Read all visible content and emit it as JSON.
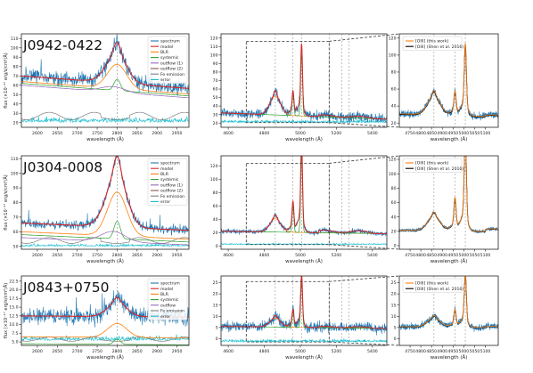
{
  "figure": {
    "colors": {
      "spectrum": "#1f77b4",
      "model": "#d62728",
      "blr": "#ff7f0e",
      "systemic": "#2ca02c",
      "outflow1": "#9467bd",
      "outflow2": "#8c564b",
      "outflow": "#9467bd",
      "fe": "#7f7f7f",
      "error": "#17becf",
      "oiii_this": "#ff7f0e",
      "oiii_shen": "#000000"
    }
  },
  "chart_data": [
    {
      "type": "line",
      "object_label": "J0942-0422",
      "xlabel": "wavelength (Å)",
      "ylabel": "flux (×10⁻¹⁷ erg/s/cm²/Å)",
      "xlim": [
        2560,
        2980
      ],
      "ylim": [
        15,
        115
      ],
      "xticks": [
        "2600",
        "2650",
        "2700",
        "2750",
        "2800",
        "2850",
        "2900",
        "2950"
      ],
      "yticks": [
        "20",
        "30",
        "40",
        "50",
        "60",
        "70",
        "80",
        "90",
        "100",
        "110"
      ],
      "legend": [
        "spectrum",
        "model",
        "BLR",
        "systemic",
        "outflow (1)",
        "outflow (2)",
        "Fe emission",
        "error"
      ],
      "line_center": 2800
    },
    {
      "type": "line",
      "xlim": [
        4560,
        5480
      ],
      "ylim": [
        15,
        125
      ],
      "xticks": [
        "4600",
        "4800",
        "5000",
        "5200",
        "5400"
      ],
      "yticks": [
        "20",
        "30",
        "40",
        "50",
        "60",
        "70",
        "80",
        "90",
        "100",
        "110",
        "120"
      ],
      "xlabel": "wavelength (Å)",
      "vlines": [
        4861,
        4959,
        5007,
        5160,
        5230,
        5270
      ]
    },
    {
      "type": "line",
      "xlim": [
        4700,
        5160
      ],
      "ylim": [
        15,
        125
      ],
      "xticks": [
        "4750",
        "4800",
        "4850",
        "4900",
        "4950",
        "5000",
        "5050",
        "5100"
      ],
      "yticks": [
        "20",
        "40",
        "60",
        "80",
        "100",
        "120"
      ],
      "xlabel": "wavelength (Å)",
      "legend": [
        "[OIII] (this work)",
        "[OIII] (Shen et al. 2016)"
      ],
      "vlines": [
        4861,
        4959,
        5007
      ]
    },
    {
      "type": "line",
      "object_label": "J0304-0008",
      "xlabel": "wavelength (Å)",
      "ylabel": "flux (×10⁻¹⁷ erg/s/cm²/Å)",
      "xlim": [
        2560,
        2980
      ],
      "ylim": [
        48,
        112
      ],
      "xticks": [
        "2600",
        "2650",
        "2700",
        "2750",
        "2800",
        "2850",
        "2900",
        "2950"
      ],
      "yticks": [
        "50",
        "60",
        "70",
        "80",
        "90",
        "100",
        "110"
      ],
      "legend": [
        "spectrum",
        "model",
        "BLR",
        "systemic",
        "outflow (1)",
        "outflow (2)",
        "Fe emission",
        "error"
      ],
      "line_center": 2800
    },
    {
      "type": "line",
      "xlim": [
        4560,
        5480
      ],
      "ylim": [
        -5,
        135
      ],
      "xticks": [
        "4600",
        "4800",
        "5000",
        "5200",
        "5400"
      ],
      "yticks": [
        "0",
        "20",
        "40",
        "60",
        "80",
        "100",
        "120"
      ],
      "xlabel": "wavelength (Å)",
      "vlines": [
        4861,
        4959,
        5007,
        5160,
        5230,
        5270
      ]
    },
    {
      "type": "line",
      "xlim": [
        4700,
        5160
      ],
      "ylim": [
        -5,
        125
      ],
      "xticks": [
        "4750",
        "4800",
        "4850",
        "4900",
        "4950",
        "5000",
        "5050",
        "5100"
      ],
      "yticks": [
        "0",
        "20",
        "40",
        "60",
        "80",
        "100",
        "120"
      ],
      "xlabel": "wavelength (Å)",
      "legend": [
        "[OIII] (this work)",
        "[OIII] (Shen et al. 2016)"
      ],
      "vlines": [
        4861,
        4959,
        5007
      ]
    },
    {
      "type": "line",
      "object_label": "J0843+0750",
      "xlabel": "wavelength (Å)",
      "ylabel": "flux (×10⁻¹⁷ erg/s/cm²/Å)",
      "xlim": [
        2560,
        2980
      ],
      "ylim": [
        4,
        24
      ],
      "xticks": [
        "2600",
        "2650",
        "2700",
        "2750",
        "2800",
        "2850",
        "2900",
        "2950"
      ],
      "yticks": [
        "5.0",
        "7.5",
        "10.0",
        "12.5",
        "15.0",
        "17.5",
        "20.0",
        "22.5"
      ],
      "legend": [
        "spectrum",
        "model",
        "BLR",
        "systemic",
        "outflow",
        "Fe emission",
        "error"
      ],
      "line_center": 2800
    },
    {
      "type": "line",
      "xlim": [
        4560,
        5480
      ],
      "ylim": [
        -3,
        28
      ],
      "xticks": [
        "4600",
        "4800",
        "5000",
        "5200",
        "5400"
      ],
      "yticks": [
        "0",
        "5",
        "10",
        "15",
        "20",
        "25"
      ],
      "xlabel": "wavelength (Å)",
      "vlines": [
        4861,
        4959,
        5007,
        5160,
        5230,
        5270
      ]
    },
    {
      "type": "line",
      "xlim": [
        4700,
        5160
      ],
      "ylim": [
        -3,
        28
      ],
      "xticks": [
        "4750",
        "4800",
        "4850",
        "4900",
        "4950",
        "5000",
        "5050",
        "5100"
      ],
      "yticks": [
        "0",
        "5",
        "10",
        "15",
        "20",
        "25"
      ],
      "xlabel": "wavelength (Å)",
      "legend": [
        "[OIII] (this work)",
        "[OIII] (Shen et al. 2016)"
      ],
      "vlines": [
        4861,
        4959,
        5007
      ]
    }
  ]
}
